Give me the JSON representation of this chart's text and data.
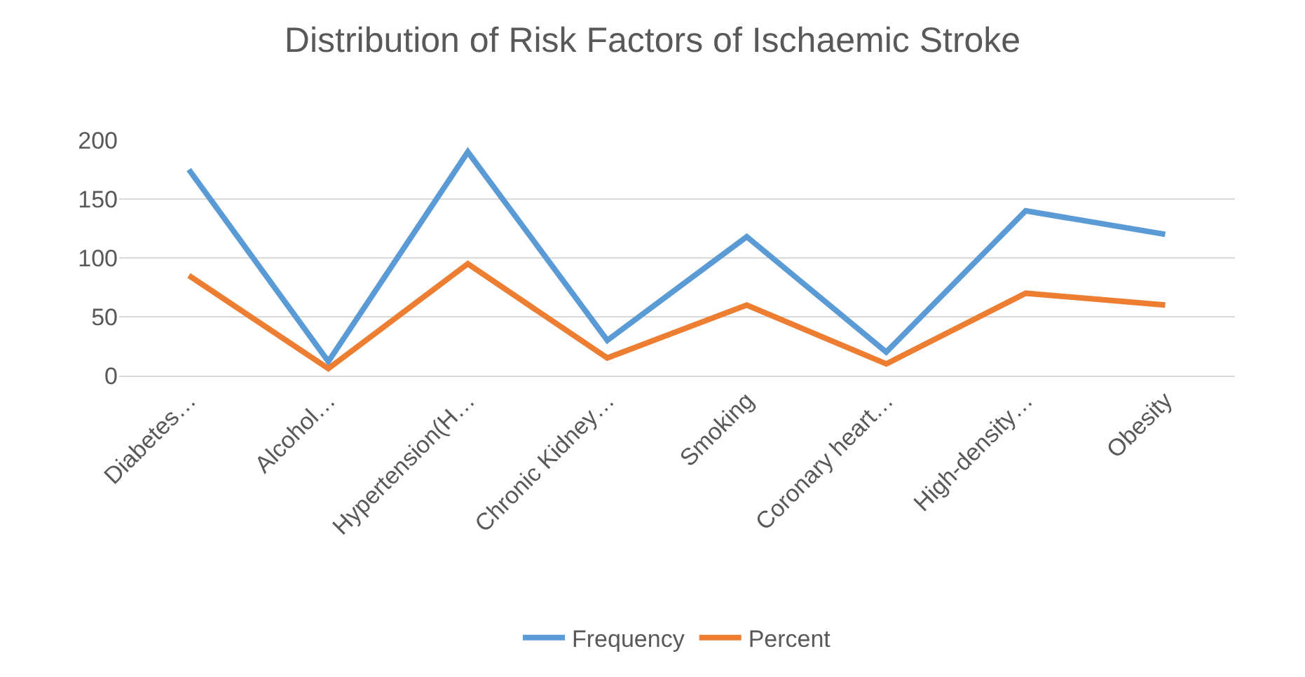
{
  "chart_data": {
    "type": "line",
    "title": "Distribution of Risk Factors of Ischaemic Stroke",
    "categories": [
      "Diabetes…",
      "Alcohol…",
      "Hypertension(H…",
      "Chronic Kidney…",
      "Smoking",
      "Coronary heart…",
      "High-density…",
      "Obesity"
    ],
    "series": [
      {
        "name": "Frequency",
        "color": "#5b9bd5",
        "values": [
          175,
          12,
          190,
          30,
          118,
          20,
          140,
          120
        ]
      },
      {
        "name": "Percent",
        "color": "#ed7d31",
        "values": [
          85,
          6,
          95,
          15,
          60,
          10,
          70,
          60
        ]
      }
    ],
    "ylim": [
      0,
      200
    ],
    "yticks": [
      0,
      50,
      100,
      150,
      200
    ],
    "grid": "y",
    "legend": "bottom",
    "marker": "none",
    "line_style": "solid"
  }
}
